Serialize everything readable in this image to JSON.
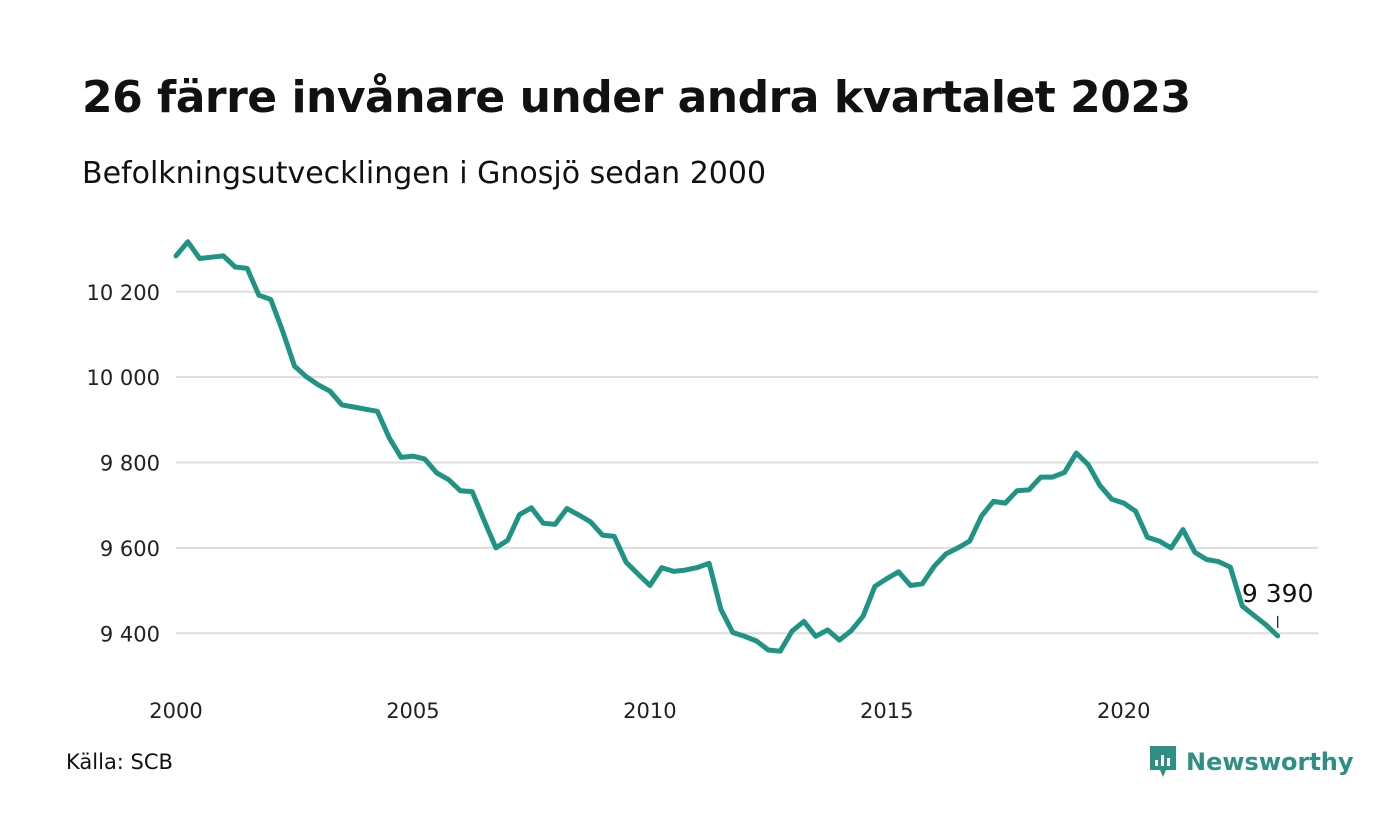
{
  "title": "26 färre invånare under andra kvartalet 2023",
  "subtitle": "Befolkningsutvecklingen i Gnosjö sedan 2000",
  "source": "Källa: SCB",
  "brand": {
    "name": "Newsworthy",
    "icon": "newsworthy-logo-icon",
    "color": "#2f8f85"
  },
  "colors": {
    "line": "#1f9485",
    "grid": "#dddddd"
  },
  "chart_data": {
    "type": "line",
    "title": "26 färre invånare under andra kvartalet 2023",
    "subtitle": "Befolkningsutvecklingen i Gnosjö sedan 2000",
    "xlabel": "",
    "ylabel": "",
    "xlim": [
      2000,
      2024.1
    ],
    "ylim": [
      9300,
      10340
    ],
    "grid": "horizontal",
    "x_ticks": [
      2000,
      2005,
      2010,
      2015,
      2020
    ],
    "x_tick_labels": [
      "2000",
      "2005",
      "2010",
      "2015",
      "2020"
    ],
    "y_ticks": [
      9400,
      9600,
      9800,
      10000,
      10200
    ],
    "y_tick_labels": [
      "9 400",
      "9 600",
      "9 800",
      "10 000",
      "10 200"
    ],
    "end_label": "9 390",
    "series": [
      {
        "x": [
          2000.0,
          2000.25,
          2000.5,
          2000.75,
          2001.0,
          2001.25,
          2001.5,
          2001.75,
          2002.0,
          2002.25,
          2002.5,
          2002.75,
          2003.0,
          2003.25,
          2003.5,
          2003.75,
          2004.0,
          2004.25,
          2004.5,
          2004.75,
          2005.0,
          2005.25,
          2005.5,
          2005.75,
          2006.0,
          2006.25,
          2006.5,
          2006.75,
          2007.0,
          2007.25,
          2007.5,
          2007.75,
          2008.0,
          2008.25,
          2008.5,
          2008.75,
          2009.0,
          2009.25,
          2009.5,
          2009.75,
          2010.0,
          2010.25,
          2010.5,
          2010.75,
          2011.0,
          2011.25,
          2011.5,
          2011.75,
          2012.0,
          2012.25,
          2012.5,
          2012.75,
          2013.0,
          2013.25,
          2013.5,
          2013.75,
          2014.0,
          2014.25,
          2014.5,
          2014.75,
          2015.0,
          2015.25,
          2015.5,
          2015.75,
          2016.0,
          2016.25,
          2016.5,
          2016.75,
          2017.0,
          2017.25,
          2017.5,
          2017.75,
          2018.0,
          2018.25,
          2018.5,
          2018.75,
          2019.0,
          2019.25,
          2019.5,
          2019.75,
          2020.0,
          2020.25,
          2020.5,
          2020.75,
          2021.0,
          2021.25,
          2021.5,
          2021.75,
          2022.0,
          2022.25,
          2022.5,
          2022.75,
          2023.0,
          2023.25
        ],
        "values": [
          10284,
          10317,
          10278,
          10281,
          10284,
          10258,
          10255,
          10192,
          10182,
          10108,
          10026,
          10001,
          9982,
          9967,
          9935,
          9930,
          9925,
          9920,
          9858,
          9812,
          9815,
          9808,
          9776,
          9760,
          9734,
          9732,
          9665,
          9600,
          9618,
          9678,
          9694,
          9658,
          9655,
          9692,
          9677,
          9661,
          9630,
          9627,
          9566,
          9539,
          9512,
          9554,
          9545,
          9548,
          9554,
          9564,
          9456,
          9402,
          9393,
          9382,
          9361,
          9358,
          9405,
          9428,
          9393,
          9408,
          9384,
          9406,
          9440,
          9510,
          9528,
          9544,
          9512,
          9516,
          9557,
          9586,
          9600,
          9616,
          9675,
          9709,
          9705,
          9734,
          9736,
          9766,
          9766,
          9777,
          9822,
          9795,
          9746,
          9714,
          9705,
          9686,
          9625,
          9616,
          9600,
          9643,
          9590,
          9573,
          9568,
          9555,
          9464,
          9442,
          9420,
          9394
        ]
      }
    ]
  }
}
